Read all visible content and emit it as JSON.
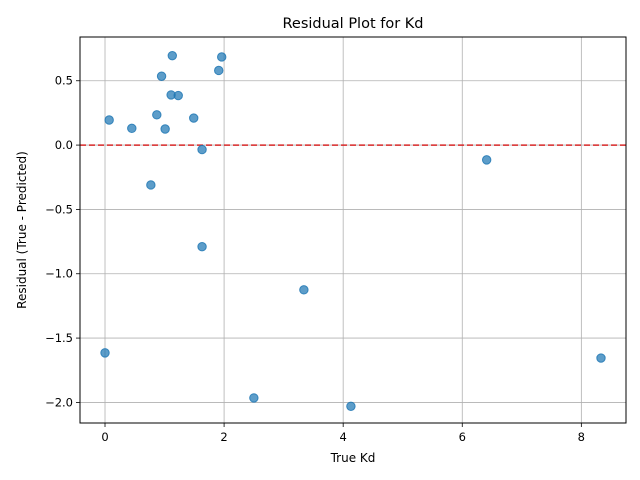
{
  "chart_data": {
    "type": "scatter",
    "title": "Residual Plot for Kd",
    "xlabel": "True Kd",
    "ylabel": "Residual (True - Predicted)",
    "xlim": [
      -0.42,
      8.75
    ],
    "ylim": [
      -2.16,
      0.84
    ],
    "xticks": [
      0,
      2,
      4,
      6,
      8
    ],
    "yticks": [
      0.5,
      0.0,
      -0.5,
      -1.0,
      -1.5,
      -2.0
    ],
    "xtick_labels": [
      "0",
      "2",
      "4",
      "6",
      "8"
    ],
    "ytick_labels": [
      "0.5",
      "0.0",
      "−0.5",
      "−1.0",
      "−1.5",
      "−2.0"
    ],
    "grid": true,
    "reference_line": {
      "y": 0,
      "style": "dashed",
      "color": "#d62728"
    },
    "point_color": "#1f77b4",
    "points": [
      {
        "x": 0.07,
        "y": 0.195
      },
      {
        "x": 0.45,
        "y": 0.13
      },
      {
        "x": 0.77,
        "y": -0.31
      },
      {
        "x": 0.87,
        "y": 0.235
      },
      {
        "x": 0.95,
        "y": 0.535
      },
      {
        "x": 1.01,
        "y": 0.125
      },
      {
        "x": 1.11,
        "y": 0.39
      },
      {
        "x": 1.13,
        "y": 0.695
      },
      {
        "x": 1.23,
        "y": 0.385
      },
      {
        "x": 1.49,
        "y": 0.21
      },
      {
        "x": 1.63,
        "y": -0.035
      },
      {
        "x": 1.63,
        "y": -0.79
      },
      {
        "x": 1.91,
        "y": 0.58
      },
      {
        "x": 1.96,
        "y": 0.685
      },
      {
        "x": 2.5,
        "y": -1.965
      },
      {
        "x": 3.34,
        "y": -1.125
      },
      {
        "x": 4.13,
        "y": -2.03
      },
      {
        "x": 6.41,
        "y": -0.115
      },
      {
        "x": 8.33,
        "y": -1.655
      },
      {
        "x": 0.0,
        "y": -1.615
      }
    ]
  }
}
